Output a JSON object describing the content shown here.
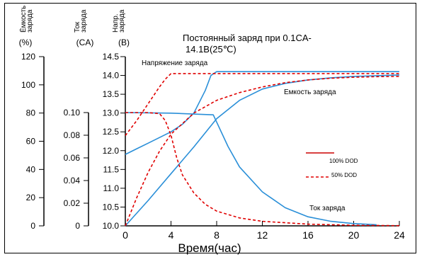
{
  "chart_data": {
    "type": "line",
    "title": "Постоянный заряд при 0.1CA-14.1В(25℃)",
    "title_lines": [
      "Постоянный заряд при 0.1CA-",
      "14.1В(25℃)"
    ],
    "xlabel": "Время(час)",
    "x_ticks": [
      0,
      4,
      8,
      12,
      16,
      20,
      24
    ],
    "xlim": [
      0,
      24
    ],
    "axes": [
      {
        "header": [
          "Ёмкость",
          "заряда"
        ],
        "unit": "(%)",
        "ticks": [
          0,
          20,
          40,
          60,
          80,
          100,
          120
        ],
        "ylim": [
          0,
          120
        ]
      },
      {
        "header": [
          "Ток",
          "заряда"
        ],
        "unit": "(CA)",
        "ticks": [
          "0",
          "0.02",
          "0.04",
          "0.06",
          "0.08",
          "0.10"
        ],
        "ylim": [
          0,
          0.1
        ]
      },
      {
        "header": [
          "Напр.",
          "заряда"
        ],
        "unit": "(В)",
        "ticks": [
          "10.0",
          "10.5",
          "11.0",
          "11.5",
          "12.0",
          "12.5",
          "13.0",
          "13.5",
          "14.0",
          "14.5"
        ],
        "ylim": [
          10.0,
          14.5
        ]
      }
    ],
    "legend": [
      {
        "label": "100% DOD",
        "style": "solid"
      },
      {
        "label": "50% DOD",
        "style": "dashed"
      }
    ],
    "annotations": {
      "voltage": "Напряжение заряда",
      "capacity": "Емкость заряда",
      "current": "Ток заряда"
    },
    "series": [
      {
        "name": "Напряжение заряда",
        "dod": "100% DOD",
        "axis": 2,
        "x": [
          0,
          1,
          2,
          3,
          4,
          5,
          6,
          7,
          7.5,
          8,
          10,
          14,
          18,
          22,
          24
        ],
        "y": [
          11.9,
          12.05,
          12.2,
          12.35,
          12.5,
          12.7,
          13.0,
          13.6,
          14.0,
          14.1,
          14.1,
          14.1,
          14.1,
          14.1,
          14.1
        ]
      },
      {
        "name": "Напряжение заряда",
        "dod": "50% DOD",
        "axis": 2,
        "x": [
          0,
          0.5,
          1,
          2,
          3,
          3.5,
          4,
          6,
          10,
          16,
          24
        ],
        "y": [
          12.4,
          12.6,
          12.8,
          13.25,
          13.7,
          13.9,
          14.05,
          14.05,
          14.05,
          14.05,
          14.05
        ]
      },
      {
        "name": "Емкость заряда",
        "dod": "100% DOD",
        "axis": 0,
        "x": [
          0,
          1,
          2,
          4,
          6,
          8,
          10,
          12,
          14,
          16,
          18,
          20,
          22,
          24
        ],
        "y": [
          0,
          9,
          18,
          37,
          56,
          76,
          89,
          97,
          101,
          103.5,
          105,
          106,
          106.5,
          107
        ]
      },
      {
        "name": "Емкость заряда",
        "dod": "50% DOD",
        "axis": 0,
        "x": [
          0,
          1,
          2,
          3,
          4,
          6,
          8,
          10,
          12,
          14,
          16,
          18,
          20,
          22,
          24
        ],
        "y": [
          0,
          20,
          38,
          53,
          65,
          80,
          89,
          94.5,
          98.5,
          101.5,
          103.5,
          104.7,
          105.4,
          105.8,
          106
        ]
      },
      {
        "name": "Ток заряда",
        "dod": "100% DOD",
        "axis": 1,
        "x": [
          0,
          4,
          7.7,
          9,
          10,
          12,
          14,
          16,
          18,
          20,
          22
        ],
        "y": [
          0.1,
          0.0995,
          0.098,
          0.07,
          0.052,
          0.03,
          0.016,
          0.008,
          0.004,
          0.002,
          0.001
        ]
      },
      {
        "name": "Ток заряда",
        "dod": "50% DOD",
        "axis": 1,
        "x": [
          0,
          2,
          3,
          3.5,
          4,
          4.5,
          5,
          6,
          7,
          8,
          10,
          12,
          16,
          20,
          24
        ],
        "y": [
          0.1,
          0.1,
          0.099,
          0.093,
          0.08,
          0.06,
          0.045,
          0.029,
          0.019,
          0.013,
          0.007,
          0.004,
          0.0015,
          0.0005,
          0.0002
        ]
      }
    ],
    "colors": {
      "curve": "#2a8fd8",
      "dod100": "#cc0000",
      "dod50": "#e00000",
      "axis": "#000000"
    },
    "grid": false
  }
}
